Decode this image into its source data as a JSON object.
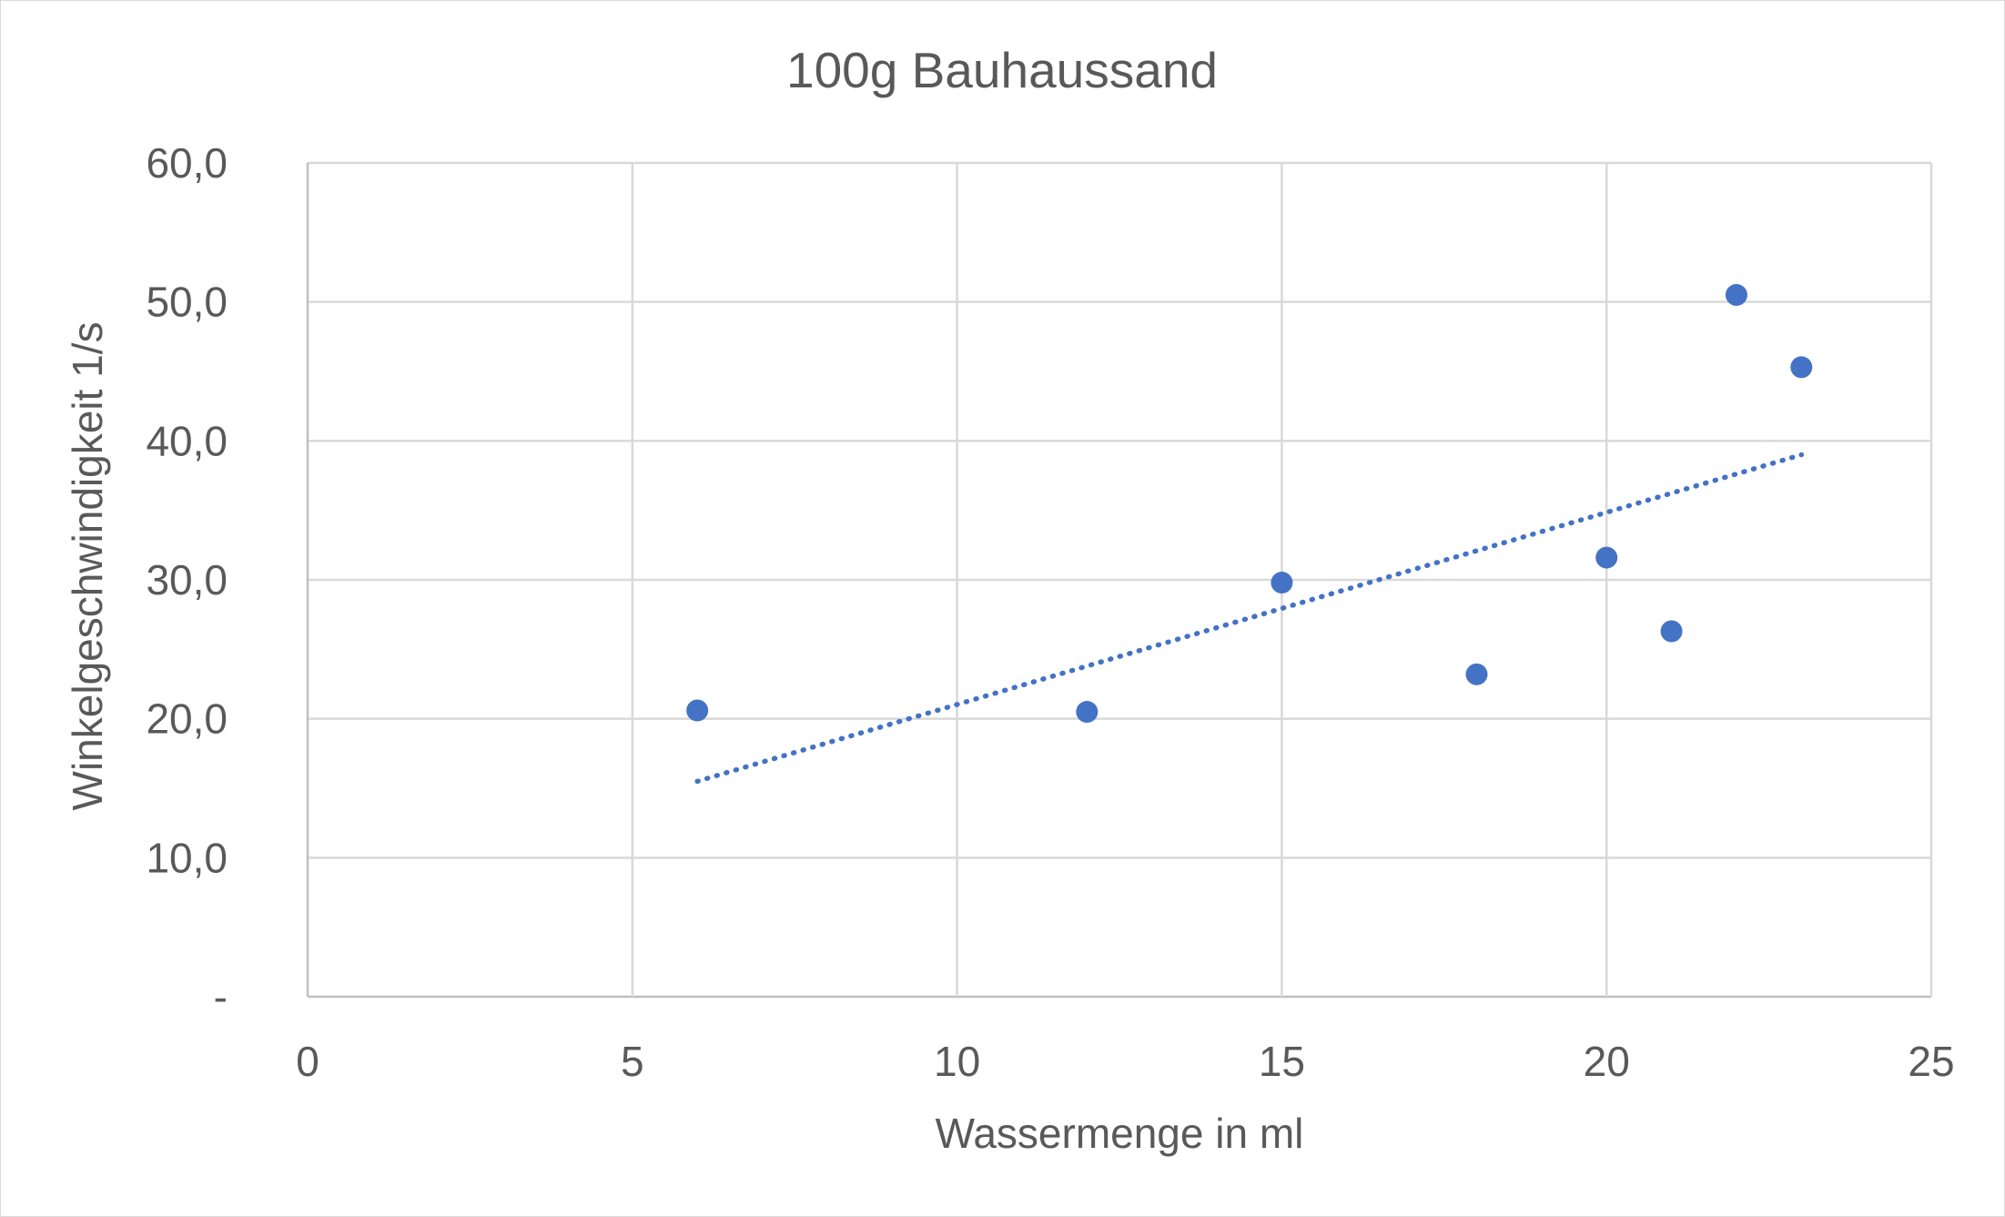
{
  "chart_data": {
    "type": "scatter",
    "title": "100g Bauhaussand",
    "xlabel": "Wassermenge in ml",
    "ylabel": "Winkelgeschwindigkeit 1/s",
    "xlim": [
      0,
      25
    ],
    "ylim": [
      0,
      60
    ],
    "x_ticks": [
      "0",
      "5",
      "10",
      "15",
      "20",
      "25"
    ],
    "y_ticks": [
      "-",
      "10,0",
      "20,0",
      "30,0",
      "40,0",
      "50,0",
      "60,0"
    ],
    "grid": true,
    "legend": "none",
    "series": [
      {
        "color": "#4472c4",
        "points": [
          {
            "x": 6,
            "y": 20.6
          },
          {
            "x": 12,
            "y": 20.5
          },
          {
            "x": 15,
            "y": 29.8
          },
          {
            "x": 18,
            "y": 23.2
          },
          {
            "x": 20,
            "y": 31.6
          },
          {
            "x": 21,
            "y": 26.3
          },
          {
            "x": 22,
            "y": 50.5
          },
          {
            "x": 23,
            "y": 45.3
          }
        ]
      }
    ],
    "trendline": {
      "type": "linear",
      "style": "dotted",
      "color": "#4472c4",
      "from": {
        "x": 6,
        "y": 15.5
      },
      "to": {
        "x": 23,
        "y": 39.0
      }
    }
  }
}
